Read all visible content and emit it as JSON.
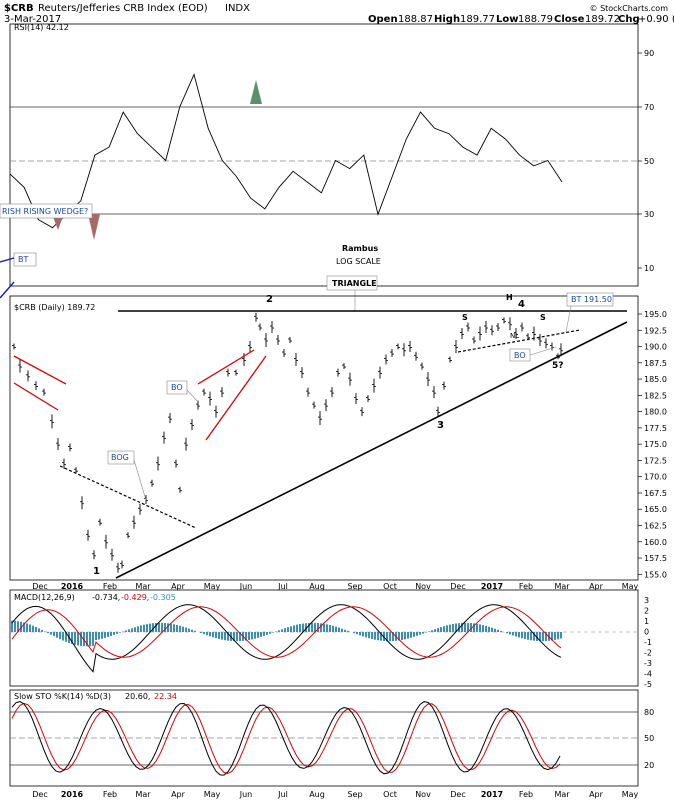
{
  "header": {
    "symbol": "$CRB",
    "name": "Reuters/Jefferies CRB Index (EOD)",
    "exchange": "INDX",
    "date": "3-Mar-2017",
    "open_label": "Open",
    "open": "188.87",
    "high_label": "High",
    "high": "189.77",
    "low_label": "Low",
    "low": "188.79",
    "close_label": "Close",
    "close": "189.72",
    "chg_label": "Chg",
    "chg": "+0.90 (+0.48%)",
    "copyright": "© StockCharts.com"
  },
  "rsi": {
    "label": "RSI(14) 42.12",
    "ticks": [
      "90",
      "70",
      "50",
      "30",
      "10"
    ],
    "wedge_label": "RISH RISING WEDGE?",
    "bt_label": "BT"
  },
  "price": {
    "label": "$CRB (Daily) 189.72",
    "rambus": "Rambus",
    "log_scale": "LOG SCALE",
    "triangle": "TRIANGLE",
    "bt_label": "BT 191.50",
    "bo1": "BO",
    "bog": "BOG",
    "bo2": "BO",
    "wave1": "1",
    "wave2": "2",
    "wave3": "3",
    "wave4": "4",
    "wave5": "5?",
    "h": "H",
    "s1": "S",
    "s2": "S",
    "nl": "NL",
    "ticks": [
      "195.0",
      "192.5",
      "190.0",
      "187.5",
      "185.0",
      "182.5",
      "180.0",
      "177.5",
      "175.0",
      "172.5",
      "170.0",
      "167.5",
      "165.0",
      "162.5",
      "160.0",
      "157.5",
      "155.0"
    ]
  },
  "months": [
    "Dec",
    "2016",
    "Feb",
    "Mar",
    "Apr",
    "May",
    "Jun",
    "Jul",
    "Aug",
    "Sep",
    "Oct",
    "Nov",
    "Dec",
    "2017",
    "Feb",
    "Mar",
    "Apr",
    "May"
  ],
  "macd": {
    "label": "MACD(12,26,9)",
    "v1": "-0.734,",
    "v2": "-0.429,",
    "v3": "-0.305",
    "ticks": [
      "3",
      "2",
      "1",
      "0",
      "-1",
      "-2",
      "-3",
      "-4",
      "-5"
    ]
  },
  "sto": {
    "label": "Slow STO %K(14) %D(3)",
    "k": "20.60,",
    "d": "22.34",
    "ticks": [
      "80",
      "50",
      "20"
    ]
  },
  "chart_data": {
    "type": "line",
    "title": "$CRB Reuters/Jefferies CRB Index (EOD) INDX",
    "price_ylim": [
      155,
      197
    ],
    "rsi_ylim": [
      0,
      100
    ],
    "triangle_top": 196.0,
    "pivots": [
      {
        "label": "1",
        "x": "2016-01-20",
        "y": 155.5
      },
      {
        "label": "2",
        "x": "2016-06-08",
        "y": 196.0
      },
      {
        "label": "3",
        "x": "2016-11-14",
        "y": 179.0
      },
      {
        "label": "4",
        "x": "2017-01-25",
        "y": 194.5
      },
      {
        "label": "5?",
        "x": "2017-03-03",
        "y": 188.8
      }
    ],
    "rsi_values": [
      45,
      40,
      28,
      25,
      30,
      35,
      52,
      55,
      68,
      60,
      55,
      50,
      70,
      82,
      62,
      50,
      44,
      36,
      32,
      40,
      46,
      42,
      38,
      50,
      47,
      52,
      30,
      44,
      58,
      68,
      62,
      60,
      55,
      52,
      62,
      58,
      52,
      48,
      50,
      42
    ]
  },
  "colors": {
    "ma_red": "#e00000",
    "wedge_blue": "#1818c0",
    "macd_bar": "#3a8fb8",
    "label_blue": "#1848a8",
    "rsi_fill_top": "#5a9070",
    "rsi_fill_bot": "#a86868"
  }
}
